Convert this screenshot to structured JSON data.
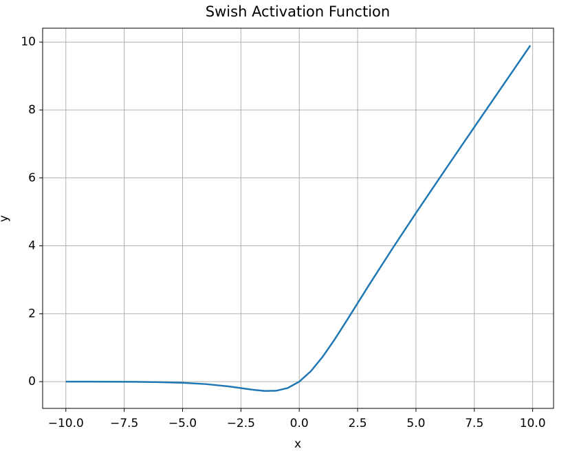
{
  "chart_data": {
    "type": "line",
    "title": "Swish Activation Function",
    "x_label": "x",
    "y_label": "y",
    "x": [
      -10,
      -9,
      -8,
      -7,
      -6,
      -5,
      -4,
      -3,
      -2,
      -1.5,
      -1,
      -0.5,
      0,
      0.5,
      1,
      1.5,
      2,
      3,
      4,
      5,
      6,
      7,
      8,
      9,
      9.9
    ],
    "series": [
      {
        "name": "Swish",
        "color": "#1f77b4",
        "values": [
          -0.0005,
          -0.001,
          -0.003,
          -0.006,
          -0.015,
          -0.033,
          -0.072,
          -0.142,
          -0.238,
          -0.274,
          -0.269,
          -0.189,
          0,
          0.311,
          0.731,
          1.226,
          1.762,
          2.858,
          3.928,
          4.967,
          5.985,
          6.994,
          7.997,
          8.999,
          9.9
        ]
      }
    ],
    "xlim": [
      -10.995,
      10.895
    ],
    "ylim": [
      -0.787,
      10.409
    ],
    "xticks": [
      {
        "value": -10,
        "label": "−10.0"
      },
      {
        "value": -7.5,
        "label": "−7.5"
      },
      {
        "value": -5,
        "label": "−5.0"
      },
      {
        "value": -2.5,
        "label": "−2.5"
      },
      {
        "value": 0,
        "label": "0.0"
      },
      {
        "value": 2.5,
        "label": "2.5"
      },
      {
        "value": 5,
        "label": "5.0"
      },
      {
        "value": 7.5,
        "label": "7.5"
      },
      {
        "value": 10,
        "label": "10.0"
      }
    ],
    "yticks": [
      0,
      2,
      4,
      6,
      8,
      10
    ],
    "grid": true
  }
}
